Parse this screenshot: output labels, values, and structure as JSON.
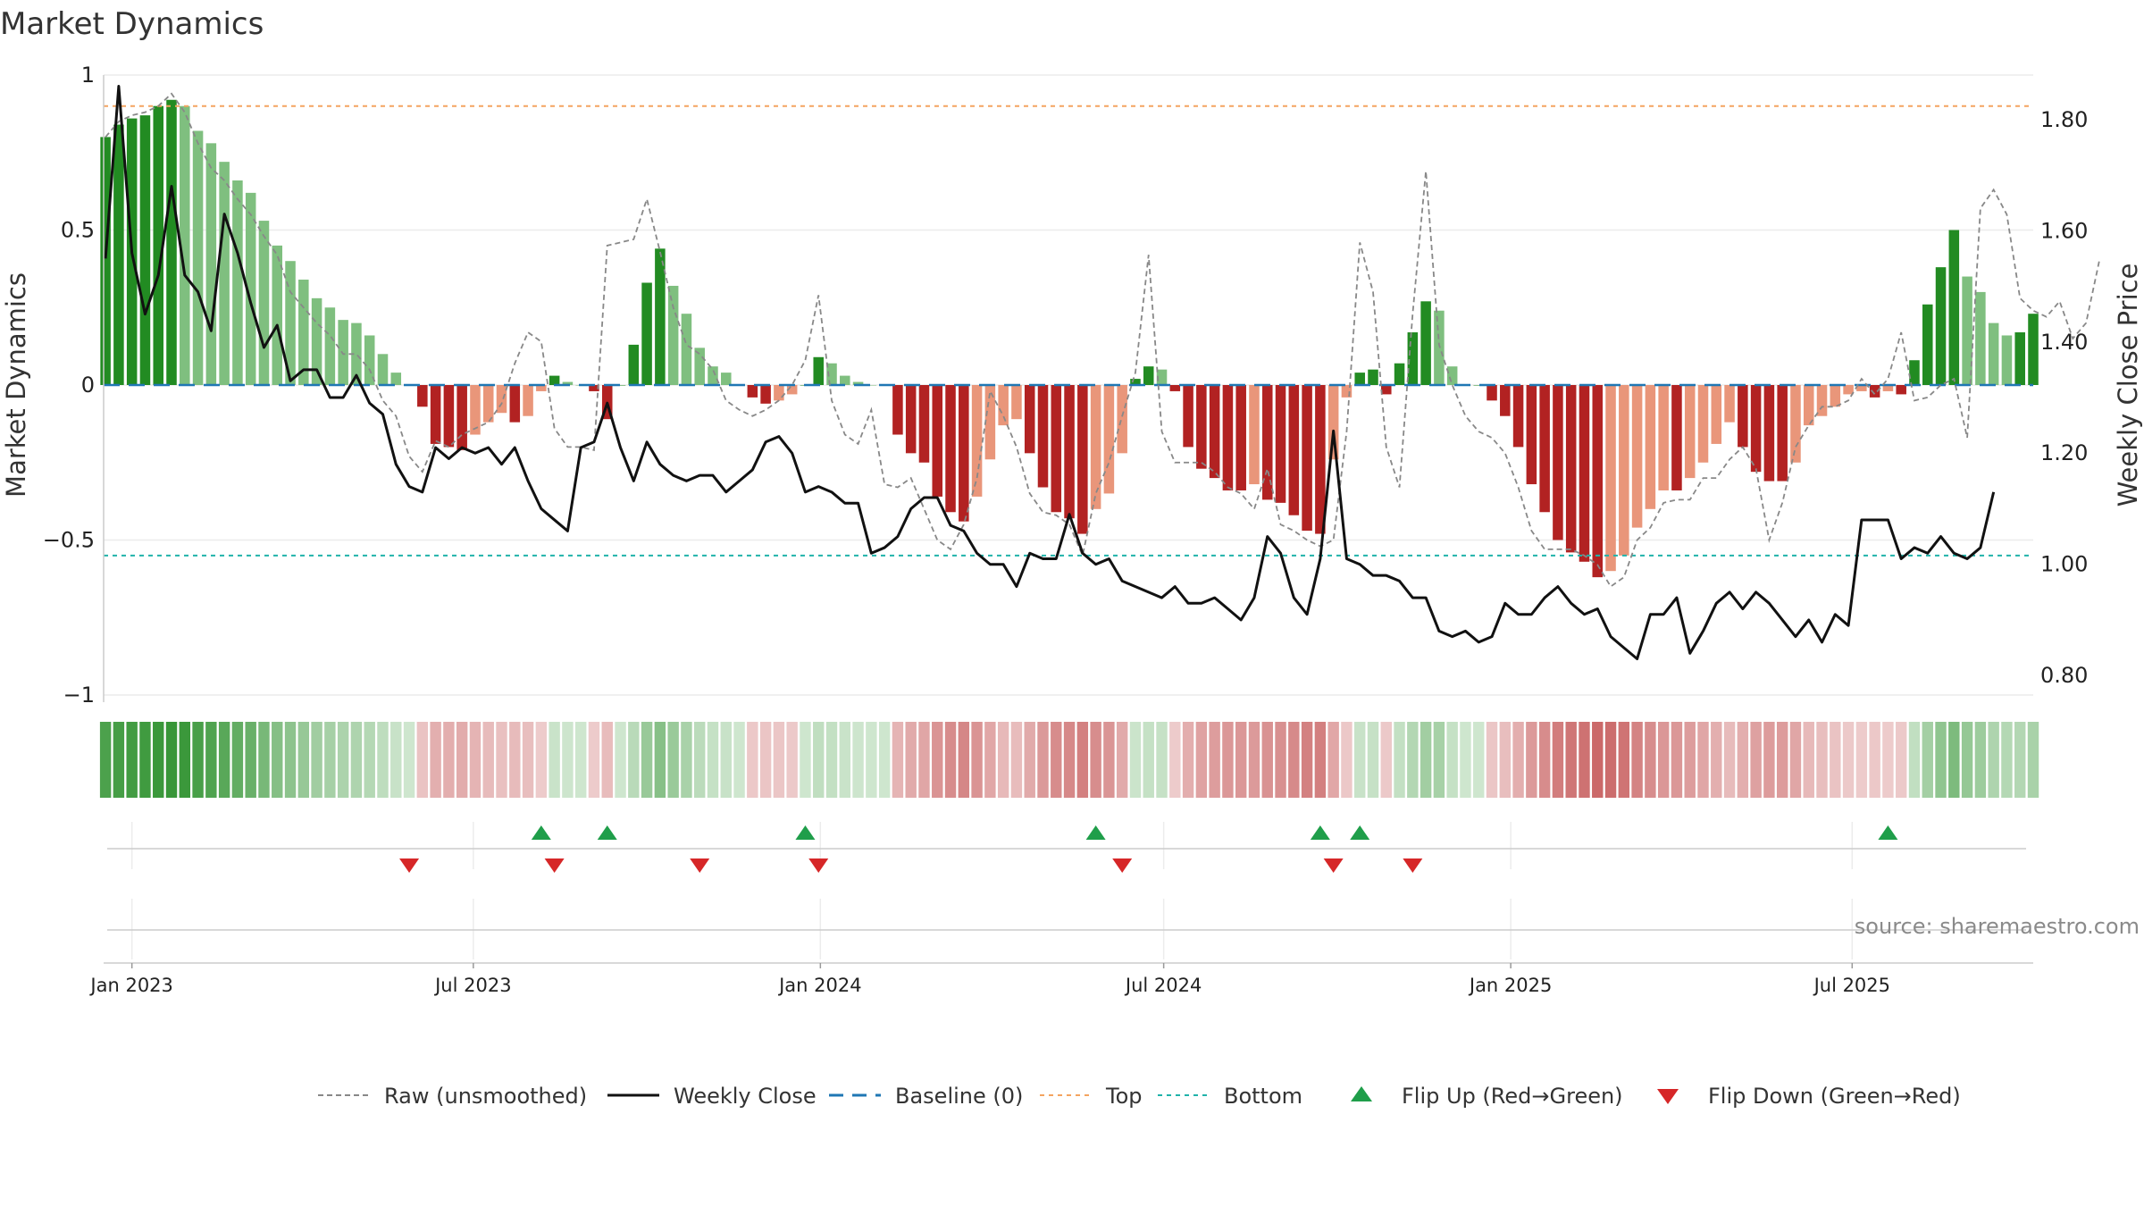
{
  "chart_data": {
    "type": "bar",
    "title": "Market Dynamics",
    "ylabel_left": "Market Dynamics",
    "ylabel_right": "Weekly Close Price",
    "left_ylim": [
      -1,
      1
    ],
    "left_ticks": [
      1,
      0.5,
      0,
      -0.5,
      -1
    ],
    "left_tick_labels": [
      "1",
      "0.5",
      "0",
      "−0.5",
      "−1"
    ],
    "right_ylim": [
      0.765,
      1.88
    ],
    "right_ticks": [
      0.8,
      1.0,
      1.2,
      1.4,
      1.6,
      1.8
    ],
    "right_tick_labels": [
      "0.80",
      "1.00",
      "1.20",
      "1.40",
      "1.60",
      "1.80"
    ],
    "x_ticks": [
      "2023-01-01",
      "2023-07-01",
      "2024-01-01",
      "2024-07-01",
      "2025-01-01",
      "2025-07-01"
    ],
    "x_tick_labels": [
      "Jan 2023",
      "Jul 2023",
      "Jan 2024",
      "Jul 2024",
      "Jan 2025",
      "Jul 2025"
    ],
    "x_range": [
      "2022-12-17",
      "2025-10-05"
    ],
    "first_week": "2022-12-18",
    "top_level": 0.9,
    "bottom_level": -0.55,
    "grid": true,
    "legend_position": "bottom",
    "source": "source: sharemaestro.com",
    "colors": {
      "strong_green": "#228b22",
      "light_green": "#7fbf7f",
      "strong_red": "#b22222",
      "light_red": "#e9967a",
      "raw": "#888888",
      "close": "#111111",
      "baseline": "#1f77b4",
      "top": "#f4a460",
      "bottom": "#20b2aa",
      "flip_up": "#1f9e4a",
      "flip_down": "#d62728"
    },
    "dynamics": [
      0.8,
      0.84,
      0.86,
      0.87,
      0.9,
      0.92,
      0.9,
      0.82,
      0.78,
      0.72,
      0.66,
      0.62,
      0.53,
      0.45,
      0.4,
      0.34,
      0.28,
      0.25,
      0.21,
      0.2,
      0.16,
      0.1,
      0.04,
      0.0,
      -0.07,
      -0.19,
      -0.2,
      -0.21,
      -0.16,
      -0.12,
      -0.09,
      -0.12,
      -0.1,
      -0.02,
      0.03,
      0.01,
      0.0,
      -0.02,
      -0.11,
      0.0,
      0.13,
      0.33,
      0.44,
      0.32,
      0.23,
      0.12,
      0.06,
      0.04,
      0.0,
      -0.04,
      -0.06,
      -0.05,
      -0.03,
      0.0,
      0.09,
      0.07,
      0.03,
      0.01,
      0.0,
      0.0,
      -0.16,
      -0.22,
      -0.25,
      -0.36,
      -0.41,
      -0.44,
      -0.36,
      -0.24,
      -0.13,
      -0.11,
      -0.22,
      -0.33,
      -0.41,
      -0.43,
      -0.48,
      -0.4,
      -0.35,
      -0.22,
      0.02,
      0.06,
      0.05,
      -0.02,
      -0.2,
      -0.27,
      -0.3,
      -0.34,
      -0.34,
      -0.32,
      -0.37,
      -0.38,
      -0.42,
      -0.47,
      -0.48,
      -0.24,
      -0.04,
      0.04,
      0.05,
      -0.03,
      0.07,
      0.17,
      0.27,
      0.24,
      0.06,
      0.0,
      0.0,
      -0.05,
      -0.1,
      -0.2,
      -0.32,
      -0.41,
      -0.5,
      -0.54,
      -0.57,
      -0.62,
      -0.6,
      -0.55,
      -0.46,
      -0.4,
      -0.34,
      -0.34,
      -0.3,
      -0.25,
      -0.19,
      -0.12,
      -0.2,
      -0.28,
      -0.31,
      -0.31,
      -0.25,
      -0.13,
      -0.1,
      -0.07,
      -0.03,
      -0.02,
      -0.04,
      -0.02,
      -0.03,
      0.08,
      0.26,
      0.38,
      0.5,
      0.35,
      0.3,
      0.2,
      0.16,
      0.17,
      0.23
    ],
    "raw_unsmoothed": [
      0.8,
      0.85,
      0.87,
      0.88,
      0.9,
      0.94,
      0.88,
      0.78,
      0.7,
      0.66,
      0.6,
      0.55,
      0.48,
      0.42,
      0.3,
      0.25,
      0.2,
      0.16,
      0.1,
      0.1,
      0.05,
      -0.05,
      -0.1,
      -0.23,
      -0.28,
      -0.18,
      -0.2,
      -0.16,
      -0.14,
      -0.12,
      -0.06,
      0.07,
      0.17,
      0.14,
      -0.14,
      -0.2,
      -0.2,
      -0.21,
      0.45,
      0.46,
      0.47,
      0.6,
      0.43,
      0.25,
      0.13,
      0.1,
      0.05,
      -0.05,
      -0.08,
      -0.1,
      -0.08,
      -0.05,
      0.0,
      0.08,
      0.29,
      -0.05,
      -0.16,
      -0.19,
      -0.08,
      -0.32,
      -0.33,
      -0.3,
      -0.4,
      -0.5,
      -0.53,
      -0.45,
      -0.3,
      -0.02,
      -0.1,
      -0.2,
      -0.35,
      -0.41,
      -0.42,
      -0.45,
      -0.55,
      -0.35,
      -0.25,
      -0.1,
      0.04,
      0.42,
      -0.15,
      -0.25,
      -0.25,
      -0.25,
      -0.28,
      -0.33,
      -0.35,
      -0.4,
      -0.27,
      -0.45,
      -0.47,
      -0.5,
      -0.52,
      -0.5,
      -0.15,
      0.46,
      0.3,
      -0.2,
      -0.33,
      0.23,
      0.69,
      0.13,
      0.0,
      -0.1,
      -0.15,
      -0.17,
      -0.22,
      -0.33,
      -0.47,
      -0.53,
      -0.53,
      -0.53,
      -0.55,
      -0.58,
      -0.65,
      -0.62,
      -0.5,
      -0.46,
      -0.38,
      -0.37,
      -0.37,
      -0.3,
      -0.3,
      -0.24,
      -0.2,
      -0.27,
      -0.5,
      -0.38,
      -0.2,
      -0.13,
      -0.07,
      -0.07,
      -0.05,
      0.02,
      -0.03,
      0.02,
      0.17,
      -0.05,
      -0.04,
      0.0,
      0.02,
      -0.17,
      0.57,
      0.63,
      0.55,
      0.28,
      0.24,
      0.22,
      0.27,
      0.15,
      0.2,
      0.4
    ],
    "weekly_close": [
      1.55,
      1.86,
      1.56,
      1.45,
      1.52,
      1.68,
      1.52,
      1.49,
      1.42,
      1.63,
      1.56,
      1.47,
      1.39,
      1.43,
      1.33,
      1.35,
      1.35,
      1.3,
      1.3,
      1.34,
      1.29,
      1.27,
      1.18,
      1.14,
      1.13,
      1.21,
      1.19,
      1.21,
      1.2,
      1.21,
      1.18,
      1.21,
      1.15,
      1.1,
      1.08,
      1.06,
      1.21,
      1.22,
      1.29,
      1.21,
      1.15,
      1.22,
      1.18,
      1.16,
      1.15,
      1.16,
      1.16,
      1.13,
      1.15,
      1.17,
      1.22,
      1.23,
      1.2,
      1.13,
      1.14,
      1.13,
      1.11,
      1.11,
      1.02,
      1.03,
      1.05,
      1.1,
      1.12,
      1.12,
      1.07,
      1.06,
      1.02,
      1.0,
      1.0,
      0.96,
      1.02,
      1.01,
      1.01,
      1.09,
      1.02,
      1.0,
      1.01,
      0.97,
      0.96,
      0.95,
      0.94,
      0.96,
      0.93,
      0.93,
      0.94,
      0.92,
      0.9,
      0.94,
      1.05,
      1.02,
      0.94,
      0.91,
      1.01,
      1.24,
      1.01,
      1.0,
      0.98,
      0.98,
      0.97,
      0.94,
      0.94,
      0.88,
      0.87,
      0.88,
      0.86,
      0.87,
      0.93,
      0.91,
      0.91,
      0.94,
      0.96,
      0.93,
      0.91,
      0.92,
      0.87,
      0.85,
      0.83,
      0.91,
      0.91,
      0.94,
      0.84,
      0.88,
      0.93,
      0.95,
      0.92,
      0.95,
      0.93,
      0.9,
      0.87,
      0.9,
      0.86,
      0.91,
      0.89,
      1.08,
      1.08,
      1.08,
      1.01,
      1.03,
      1.02,
      1.05,
      1.02,
      1.01,
      1.03,
      1.13
    ],
    "flip_up_weeks": [
      33,
      38,
      53,
      75,
      92,
      95,
      135
    ],
    "flip_down_weeks": [
      23,
      34,
      45,
      54,
      77,
      93,
      99
    ],
    "legend": [
      {
        "key": "raw",
        "label": "Raw (unsmoothed)"
      },
      {
        "key": "close",
        "label": "Weekly Close"
      },
      {
        "key": "baseline",
        "label": "Baseline (0)"
      },
      {
        "key": "top",
        "label": "Top"
      },
      {
        "key": "bottom",
        "label": "Bottom"
      },
      {
        "key": "flip_up",
        "label": "Flip Up (Red→Green)"
      },
      {
        "key": "flip_down",
        "label": "Flip Down (Green→Red)"
      }
    ]
  }
}
